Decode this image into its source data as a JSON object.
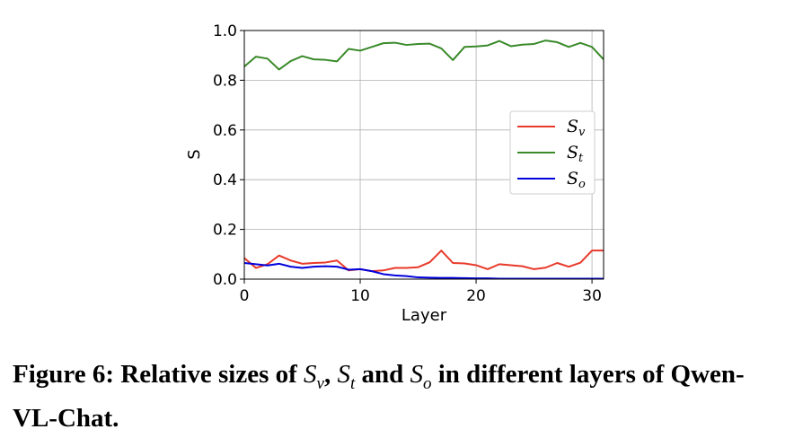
{
  "chart_data": {
    "type": "line",
    "xlabel": "Layer",
    "ylabel": "S",
    "xlim": [
      0,
      31
    ],
    "ylim": [
      0.0,
      1.0
    ],
    "xticks": [
      "0",
      "10",
      "20",
      "30"
    ],
    "yticks": [
      "0.0",
      "0.2",
      "0.4",
      "0.6",
      "0.8",
      "1.0"
    ],
    "grid": true,
    "legend_position": "center-right",
    "x": [
      0,
      1,
      2,
      3,
      4,
      5,
      6,
      7,
      8,
      9,
      10,
      11,
      12,
      13,
      14,
      15,
      16,
      17,
      18,
      19,
      20,
      21,
      22,
      23,
      24,
      25,
      26,
      27,
      28,
      29,
      30,
      31
    ],
    "series": [
      {
        "name": "S_v",
        "label_main": "S",
        "label_sub": "v",
        "color": "#e8392a",
        "values": [
          0.085,
          0.045,
          0.06,
          0.095,
          0.075,
          0.062,
          0.065,
          0.067,
          0.075,
          0.035,
          0.04,
          0.032,
          0.035,
          0.045,
          0.045,
          0.048,
          0.068,
          0.115,
          0.065,
          0.063,
          0.056,
          0.04,
          0.06,
          0.056,
          0.052,
          0.04,
          0.046,
          0.065,
          0.05,
          0.066,
          0.115,
          0.115
        ]
      },
      {
        "name": "S_t",
        "label_main": "S",
        "label_sub": "t",
        "color": "#3a8a2a",
        "values": [
          0.855,
          0.895,
          0.887,
          0.843,
          0.877,
          0.897,
          0.884,
          0.882,
          0.876,
          0.926,
          0.919,
          0.934,
          0.949,
          0.951,
          0.942,
          0.946,
          0.947,
          0.928,
          0.881,
          0.934,
          0.936,
          0.94,
          0.958,
          0.937,
          0.943,
          0.946,
          0.96,
          0.953,
          0.934,
          0.95,
          0.934,
          0.884
        ]
      },
      {
        "name": "S_o",
        "label_main": "S",
        "label_sub": "o",
        "color": "#0000dd",
        "values": [
          0.065,
          0.06,
          0.055,
          0.062,
          0.05,
          0.045,
          0.05,
          0.052,
          0.05,
          0.038,
          0.04,
          0.032,
          0.02,
          0.015,
          0.012,
          0.007,
          0.006,
          0.005,
          0.005,
          0.004,
          0.003,
          0.003,
          0.002,
          0.002,
          0.002,
          0.002,
          0.002,
          0.002,
          0.002,
          0.002,
          0.002,
          0.002
        ]
      }
    ]
  },
  "caption": {
    "prefix": "Figure 6: Relative sizes of ",
    "sym1": "S",
    "sub1": "v",
    "sep1": ", ",
    "sym2": "S",
    "sub2": "t",
    "sep2": " and ",
    "sym3": "S",
    "sub3": "o",
    "suffix": " in different layers of Qwen-VL-Chat."
  }
}
